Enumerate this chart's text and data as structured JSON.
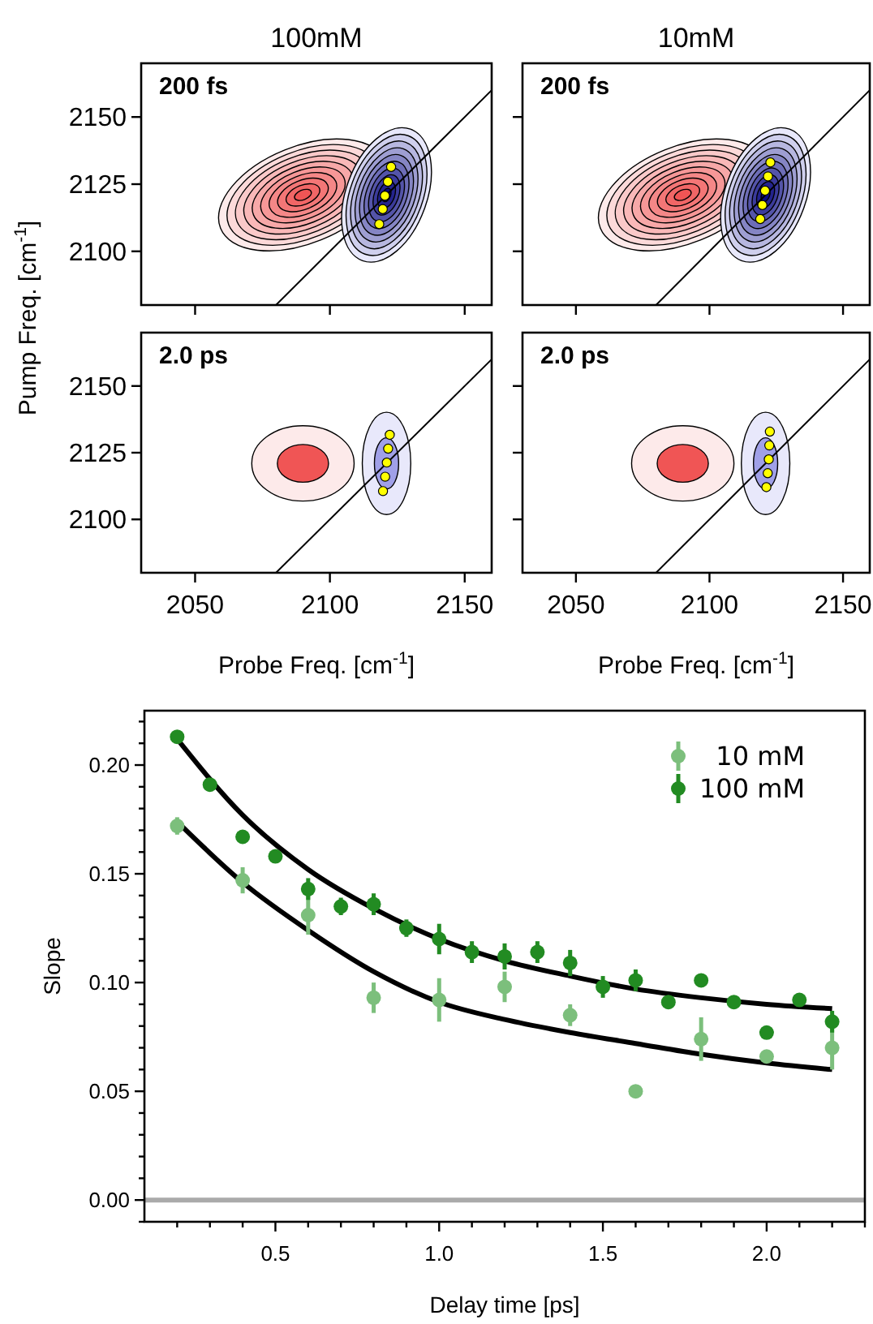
{
  "chart_data": [
    {
      "type": "scatter",
      "title": "100mM",
      "ylabel": "Pump Freq. [cm$^{-1}$]",
      "annotations": [
        "200 fs"
      ],
      "xlim": [
        2030,
        2160
      ],
      "ylim": [
        2080,
        2170
      ],
      "xticks": [
        2050,
        2100,
        2150
      ],
      "yticks": [
        2100,
        2125,
        2150
      ],
      "tick_labels": "y",
      "series": [
        {
          "type": "line",
          "color": "#000000",
          "x": [
            2080,
            2160
          ],
          "values": [
            2080,
            2160
          ]
        },
        {
          "color": "#ffff00",
          "marker": "circle",
          "x": [
            2118.3,
            2119.6,
            2120.4,
            2121.5,
            2122.7
          ],
          "values": [
            2110.1,
            2115.7,
            2120.7,
            2125.9,
            2131.4
          ]
        }
      ]
    },
    {
      "type": "scatter",
      "title": "10mM",
      "annotations": [
        "200 fs"
      ],
      "xlim": [
        2030,
        2160
      ],
      "ylim": [
        2080,
        2170
      ],
      "xticks": [
        2050,
        2100,
        2150
      ],
      "yticks": [
        2100,
        2125,
        2150
      ],
      "tick_labels": false,
      "series": [
        {
          "type": "line",
          "color": "#000000",
          "x": [
            2080,
            2160
          ],
          "values": [
            2080,
            2160
          ]
        },
        {
          "color": "#ffff00",
          "marker": "circle",
          "x": [
            2119.0,
            2119.8,
            2120.8,
            2121.9,
            2122.8
          ],
          "values": [
            2112.0,
            2117.2,
            2122.6,
            2127.9,
            2133.1
          ]
        }
      ]
    },
    {
      "type": "scatter",
      "xlabel": "Probe Freq. [cm$^{-1}$]",
      "annotations": [
        "2.0 ps"
      ],
      "xlim": [
        2030,
        2160
      ],
      "ylim": [
        2080,
        2170
      ],
      "xticks": [
        2050,
        2100,
        2150
      ],
      "yticks": [
        2100,
        2125,
        2150
      ],
      "series": [
        {
          "type": "line",
          "color": "#000000",
          "x": [
            2080,
            2160
          ],
          "values": [
            2080,
            2160
          ]
        },
        {
          "color": "#ffff00",
          "marker": "circle",
          "x": [
            2119.7,
            2120.5,
            2121.1,
            2121.6,
            2122.2
          ],
          "values": [
            2110.6,
            2116.0,
            2121.3,
            2126.5,
            2131.7
          ]
        }
      ]
    },
    {
      "type": "scatter",
      "xlabel": "Probe Freq. [cm$^{-1}$]",
      "annotations": [
        "2.0 ps"
      ],
      "xlim": [
        2030,
        2160
      ],
      "ylim": [
        2080,
        2170
      ],
      "xticks": [
        2050,
        2100,
        2150
      ],
      "yticks": [
        2100,
        2125,
        2150
      ],
      "tick_labels": "x",
      "series": [
        {
          "type": "line",
          "color": "#000000",
          "x": [
            2080,
            2160
          ],
          "values": [
            2080,
            2160
          ]
        },
        {
          "color": "#ffff00",
          "marker": "circle",
          "x": [
            2121.3,
            2121.8,
            2122.2,
            2122.4,
            2122.6
          ],
          "values": [
            2112.1,
            2117.3,
            2122.5,
            2127.7,
            2132.9
          ]
        }
      ]
    },
    {
      "type": "scatter",
      "xlabel": "Delay time [ps]",
      "ylabel": "Slope",
      "xlim": [
        0.1,
        2.3
      ],
      "ylim": [
        -0.01,
        0.225
      ],
      "legend": "top right",
      "xticks": [
        {
          "value": 0.2,
          "label": null
        },
        {
          "value": 0.3,
          "label": null
        },
        {
          "value": 0.4,
          "label": null
        },
        {
          "value": 0.5,
          "label": "0.5"
        },
        {
          "value": 0.6,
          "label": null
        },
        {
          "value": 0.7,
          "label": null
        },
        {
          "value": 0.8,
          "label": null
        },
        {
          "value": 0.9,
          "label": null
        },
        {
          "value": 1.0,
          "label": "1.0"
        },
        {
          "value": 1.1,
          "label": null
        },
        {
          "value": 1.2,
          "label": null
        },
        {
          "value": 1.3,
          "label": null
        },
        {
          "value": 1.4,
          "label": null
        },
        {
          "value": 1.5,
          "label": "1.5"
        },
        {
          "value": 1.6,
          "label": null
        },
        {
          "value": 1.7,
          "label": null
        },
        {
          "value": 1.8,
          "label": null
        },
        {
          "value": 1.9,
          "label": null
        },
        {
          "value": 2.0,
          "label": "2.0"
        },
        {
          "value": 2.1,
          "label": null
        },
        {
          "value": 2.2,
          "label": null
        },
        {
          "value": 2.3,
          "label": null
        }
      ],
      "yticks": [
        {
          "value": -0.01,
          "label": null
        },
        {
          "value": 0,
          "label": "0.00"
        },
        {
          "value": 0.01,
          "label": null
        },
        {
          "value": 0.02,
          "label": null
        },
        {
          "value": 0.03,
          "label": null
        },
        {
          "value": 0.04,
          "label": null
        },
        {
          "value": 0.05,
          "label": "0.05"
        },
        {
          "value": 0.06,
          "label": null
        },
        {
          "value": 0.07,
          "label": null
        },
        {
          "value": 0.08,
          "label": null
        },
        {
          "value": 0.09,
          "label": null
        },
        {
          "value": 0.1,
          "label": "0.10"
        },
        {
          "value": 0.11,
          "label": null
        },
        {
          "value": 0.12,
          "label": null
        },
        {
          "value": 0.13,
          "label": null
        },
        {
          "value": 0.14,
          "label": null
        },
        {
          "value": 0.15,
          "label": "0.15"
        },
        {
          "value": 0.16,
          "label": null
        },
        {
          "value": 0.17,
          "label": null
        },
        {
          "value": 0.18,
          "label": null
        },
        {
          "value": 0.19,
          "label": null
        },
        {
          "value": 0.2,
          "label": "0.20"
        },
        {
          "value": 0.21,
          "label": null
        },
        {
          "value": 0.22,
          "label": null
        }
      ],
      "ref_lines": [
        {
          "axis": "y",
          "value": 0,
          "color": "#aaaaaa"
        }
      ],
      "series": [
        {
          "type": "line",
          "color": "#000000",
          "x": [
            0.2,
            0.4,
            0.6,
            0.8,
            1.0,
            1.2,
            1.4,
            1.6,
            1.8,
            2.0,
            2.2
          ],
          "values": [
            0.174,
            0.146,
            0.124,
            0.105,
            0.091,
            0.083,
            0.077,
            0.072,
            0.067,
            0.063,
            0.06
          ]
        },
        {
          "type": "line",
          "color": "#000000",
          "x": [
            0.2,
            0.4,
            0.6,
            0.8,
            1.0,
            1.2,
            1.4,
            1.6,
            1.8,
            2.0,
            2.2
          ],
          "values": [
            0.212,
            0.177,
            0.152,
            0.134,
            0.12,
            0.11,
            0.103,
            0.097,
            0.093,
            0.09,
            0.088
          ]
        },
        {
          "name": "10 mM",
          "color": "#7cbf7c",
          "marker": "circle",
          "x": [
            0.2,
            0.4,
            0.6,
            0.8,
            1.0,
            1.2,
            1.4,
            1.6,
            1.8,
            2.0,
            2.2
          ],
          "values": [
            0.172,
            0.147,
            0.131,
            0.093,
            0.092,
            0.098,
            0.085,
            0.05,
            0.074,
            0.066,
            0.07
          ],
          "errors": [
            0.004,
            0.006,
            0.009,
            0.007,
            0.01,
            0.007,
            0.005,
            0.002,
            0.01,
            0.002,
            0.01
          ]
        },
        {
          "name": "100 mM",
          "color": "#228b22",
          "marker": "circle",
          "x": [
            0.2,
            0.3,
            0.4,
            0.5,
            0.6,
            0.7,
            0.8,
            0.9,
            1.0,
            1.1,
            1.2,
            1.3,
            1.4,
            1.5,
            1.6,
            1.7,
            1.8,
            1.9,
            2.0,
            2.1,
            2.2
          ],
          "values": [
            0.213,
            0.191,
            0.167,
            0.158,
            0.143,
            0.135,
            0.136,
            0.125,
            0.12,
            0.114,
            0.112,
            0.114,
            0.109,
            0.098,
            0.101,
            0.091,
            0.101,
            0.091,
            0.077,
            0.092,
            0.082
          ],
          "errors": [
            0.002,
            0.002,
            0.002,
            0.003,
            0.005,
            0.004,
            0.005,
            0.004,
            0.007,
            0.005,
            0.006,
            0.005,
            0.006,
            0.005,
            0.005,
            0.003,
            0.003,
            0.003,
            0.003,
            0.003,
            0.005
          ]
        }
      ]
    }
  ]
}
